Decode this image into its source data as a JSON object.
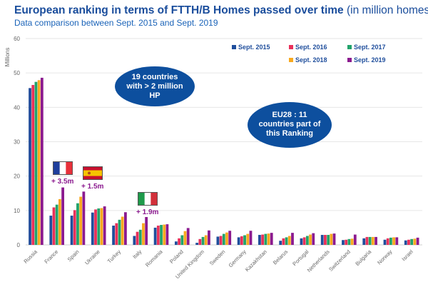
{
  "header": {
    "title": "European ranking in terms of FTTH/B Homes passed over time",
    "title_unit": "(in million homes)",
    "subtitle": "Data comparison between Sept. 2015 and Sept. 2019"
  },
  "callouts": {
    "left": [
      "19 countries",
      "with > 2 million",
      "HP"
    ],
    "right": [
      "EU28 : 11",
      "countries part of",
      "this Ranking"
    ],
    "color": "#0d4f9e"
  },
  "annotations": [
    {
      "country": "France",
      "flag": "france-flag",
      "text": "+ 3.5m"
    },
    {
      "country": "Spain",
      "flag": "spain-flag",
      "text": "+ 1.5m"
    },
    {
      "country": "Italy",
      "flag": "italy-flag",
      "text": "+ 1.9m"
    }
  ],
  "chart_data": {
    "type": "bar",
    "title": "European ranking in terms of FTTH/B Homes passed over time (in million homes)",
    "subtitle": "Data comparison between Sept. 2015 and Sept. 2019",
    "ylabel": "Millions",
    "xlabel": "",
    "ylim": [
      0,
      60
    ],
    "yticks": [
      0,
      10,
      20,
      30,
      40,
      50,
      60
    ],
    "grid": true,
    "legend_placement": "top-right",
    "categories": [
      "Russia",
      "France",
      "Spain",
      "Ukraine",
      "Turkey",
      "Italy",
      "Romania",
      "Poland",
      "United Kingdom",
      "Sweden",
      "Germany",
      "Kazakhstan",
      "Belarus",
      "Portugal",
      "Netherlands",
      "Switzerland",
      "Bulgaria",
      "Norway",
      "Israel"
    ],
    "series": [
      {
        "name": "Sept. 2015",
        "color": "#1f4e9c",
        "values": [
          45.6,
          8.5,
          8.5,
          9.4,
          5.6,
          2.6,
          5.0,
          1.0,
          0.6,
          2.4,
          2.2,
          2.9,
          1.2,
          1.9,
          2.9,
          1.4,
          1.9,
          1.5,
          1.3
        ]
      },
      {
        "name": "Sept. 2016",
        "color": "#e8305a",
        "values": [
          46.5,
          10.9,
          10.1,
          10.3,
          6.3,
          3.8,
          5.6,
          1.9,
          1.7,
          2.6,
          2.5,
          3.0,
          1.9,
          2.2,
          2.9,
          1.5,
          2.3,
          1.9,
          1.5
        ]
      },
      {
        "name": "Sept. 2017",
        "color": "#22a36b",
        "values": [
          47.4,
          11.7,
          12.1,
          10.6,
          7.3,
          4.4,
          5.8,
          2.8,
          2.3,
          3.2,
          2.8,
          3.2,
          2.2,
          2.6,
          2.9,
          1.7,
          2.3,
          2.1,
          1.7
        ]
      },
      {
        "name": "Sept. 2018",
        "color": "#f8a91f",
        "values": [
          47.9,
          13.3,
          14.0,
          10.7,
          8.2,
          6.3,
          5.9,
          4.0,
          2.8,
          3.6,
          3.2,
          3.3,
          2.6,
          3.0,
          3.2,
          1.8,
          2.3,
          2.2,
          1.8
        ]
      },
      {
        "name": "Sept. 2019",
        "color": "#8b1a8f",
        "values": [
          48.6,
          16.7,
          15.5,
          11.2,
          9.5,
          8.1,
          6.0,
          4.9,
          4.2,
          4.1,
          4.1,
          3.5,
          3.5,
          3.4,
          3.3,
          3.0,
          2.3,
          2.2,
          2.1
        ]
      }
    ]
  }
}
